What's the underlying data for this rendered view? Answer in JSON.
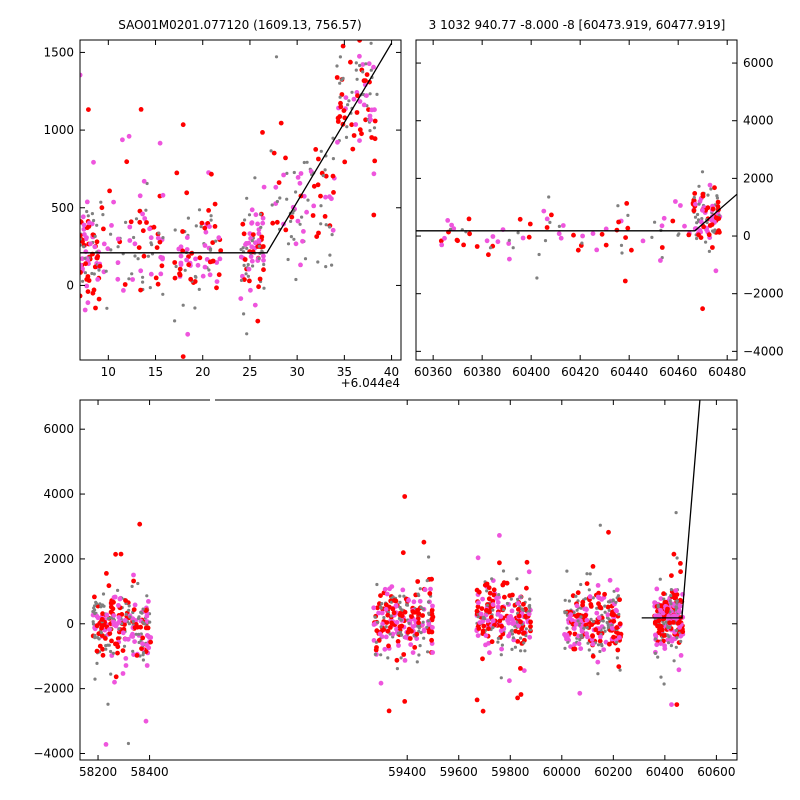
{
  "chart_data": [
    {
      "type": "scatter",
      "title": "SAO01M0201.077120 (1609.13, 756.57)",
      "xlim": [
        7,
        41
      ],
      "ylim": [
        -480,
        1580
      ],
      "x_offset_label": "+6.044e4",
      "xticks": [
        10,
        15,
        20,
        25,
        30,
        35,
        40
      ],
      "yticks": [
        0,
        500,
        1000,
        1500
      ],
      "yaxis_side": "left",
      "grid": false,
      "series_colors": [
        "#808080",
        "#ff0000",
        "#ee55dd"
      ],
      "model_line": [
        [
          7,
          210
        ],
        [
          26.8,
          210
        ],
        [
          40,
          1560
        ]
      ],
      "clusters": [
        {
          "x_range": [
            7,
            9
          ],
          "y_center": 200,
          "y_spread": 350
        },
        {
          "x_range": [
            9,
            16
          ],
          "y_center": 300,
          "y_spread": 380
        },
        {
          "x_range": [
            17,
            22
          ],
          "y_center": 220,
          "y_spread": 330
        },
        {
          "x_range": [
            24,
            26.5
          ],
          "y_center": 220,
          "y_spread": 320
        },
        {
          "x_range": [
            27,
            34
          ],
          "y_center": 500,
          "y_spread": 500
        },
        {
          "x_range": [
            34,
            38.5
          ],
          "y_center": 1200,
          "y_spread": 400
        }
      ]
    },
    {
      "type": "scatter",
      "title": "3 1032 940.77 -8.000 -8 [60473.919, 60477.919]",
      "xlim": [
        60353,
        60484
      ],
      "ylim": [
        -4300,
        6800
      ],
      "xticks": [
        60360,
        60380,
        60400,
        60420,
        60440,
        60460,
        60480
      ],
      "yticks": [
        -4000,
        -2000,
        0,
        2000,
        4000,
        6000
      ],
      "yaxis_side": "right",
      "grid": false,
      "series_colors": [
        "#808080",
        "#ff0000",
        "#ee55dd"
      ],
      "model_line": [
        [
          60353,
          180
        ],
        [
          60466.8,
          180
        ],
        [
          60484,
          1450
        ]
      ],
      "clusters": [
        {
          "x_range": [
            60363,
            60470
          ],
          "y_center": 150,
          "y_spread": 900
        },
        {
          "x_range": [
            60466,
            60477
          ],
          "y_center": 700,
          "y_spread": 1000
        }
      ]
    },
    {
      "type": "scatter",
      "title": "",
      "xlim": [
        58130,
        60680
      ],
      "ylim": [
        -4200,
        6900
      ],
      "xticks": [
        58200,
        58400,
        59400,
        59600,
        59800,
        60000,
        60200,
        60400,
        60600
      ],
      "yticks": [
        -4000,
        -2000,
        0,
        2000,
        4000,
        6000
      ],
      "yaxis_side": "left",
      "grid": false,
      "series_colors": [
        "#808080",
        "#ff0000",
        "#ee55dd"
      ],
      "model_line": [
        [
          60310,
          180
        ],
        [
          60466,
          180
        ],
        [
          60536,
          6900
        ]
      ],
      "clusters": [
        {
          "x_range": [
            58180,
            58405
          ],
          "y_center": 0,
          "y_spread": 1100
        },
        {
          "x_range": [
            59270,
            59500
          ],
          "y_center": 100,
          "y_spread": 1100
        },
        {
          "x_range": [
            59670,
            59880
          ],
          "y_center": 200,
          "y_spread": 1100
        },
        {
          "x_range": [
            60010,
            60230
          ],
          "y_center": 150,
          "y_spread": 1100
        },
        {
          "x_range": [
            60360,
            60470
          ],
          "y_center": 200,
          "y_spread": 900
        }
      ]
    }
  ]
}
